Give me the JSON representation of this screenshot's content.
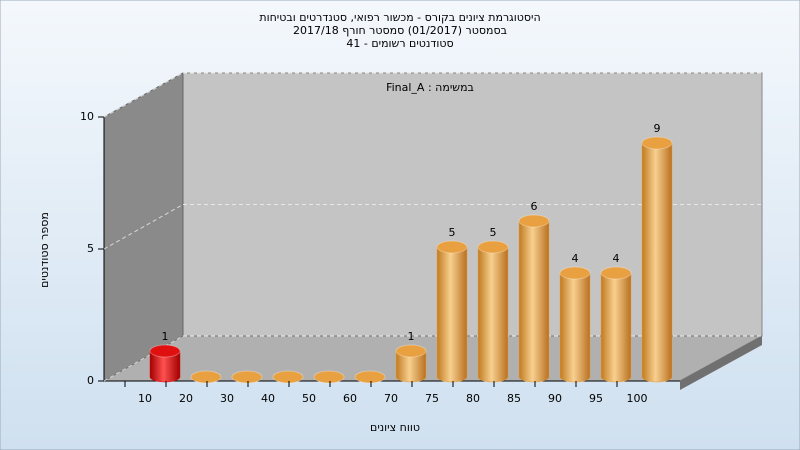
{
  "chart_data": {
    "type": "bar",
    "title": [
      "היסטוגרמת ציונים בקורס - מכשור רפואי, סטנדרטים ובטיחות",
      "בסמסטר  (01/2017)  סמסטר חורף 2017/18",
      "סטודנטים רשומים - 41"
    ],
    "annotation": "Final_A : במשימה",
    "x_label": "טווח ציונים",
    "y_label": "מספר סטודנטים",
    "categories": [
      "10",
      "20",
      "30",
      "40",
      "50",
      "60",
      "70",
      "75",
      "80",
      "85",
      "90",
      "95",
      "100"
    ],
    "values": [
      1,
      0,
      0,
      0,
      0,
      0,
      1,
      5,
      5,
      6,
      4,
      4,
      9
    ],
    "colors": [
      "#e01010",
      "#e8a040",
      "#e8a040",
      "#e8a040",
      "#e8a040",
      "#e8a040",
      "#e8a040",
      "#e8a040",
      "#e8a040",
      "#e8a040",
      "#e8a040",
      "#e8a040",
      "#e8a040"
    ],
    "ylim": [
      0,
      10
    ],
    "yticks": [
      0,
      5,
      10
    ],
    "grid": true
  }
}
